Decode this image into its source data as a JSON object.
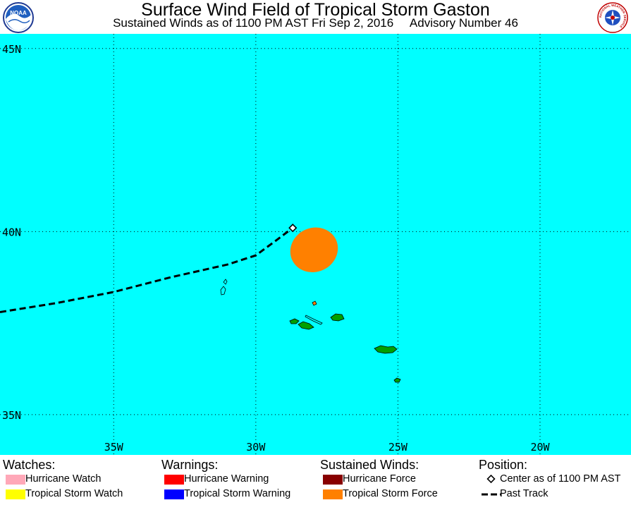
{
  "header": {
    "title": "Surface Wind Field of Tropical Storm Gaston",
    "subtitle_left": "Sustained Winds as of 1100 PM AST Fri Sep 2, 2016",
    "subtitle_right": "Advisory Number 46",
    "left_logo_text": "NOAA",
    "right_logo_text": "NATIONAL WEATHER SERVICE"
  },
  "map": {
    "ocean_color": "#00ffff",
    "land_color": "#00a000",
    "lat_labels": [
      "45N",
      "40N",
      "35N"
    ],
    "lon_labels": [
      "35W",
      "30W",
      "25W",
      "20W"
    ],
    "lat_range": [
      33.9,
      45.4
    ],
    "lon_range": [
      -39.0,
      -16.8
    ],
    "past_track": [
      [
        -39.0,
        37.8
      ],
      [
        -37.0,
        38.05
      ],
      [
        -35.0,
        38.35
      ],
      [
        -33.0,
        38.75
      ],
      [
        -31.0,
        39.1
      ],
      [
        -30.0,
        39.35
      ],
      [
        -29.3,
        39.75
      ],
      [
        -28.7,
        40.1
      ]
    ],
    "center": {
      "lon": -28.7,
      "lat": 40.1,
      "label": "Center as of 1100 PM AST"
    },
    "tropical_storm_wind_color": "#ff8000",
    "tropical_storm_wind_area": {
      "center_lon": -27.95,
      "center_lat": 39.5,
      "radius_lon": 0.85,
      "radius_lat": 0.6
    }
  },
  "legend": {
    "watches": {
      "heading": "Watches:",
      "items": [
        {
          "label": "Hurricane Watch",
          "color": "#ffa8b8"
        },
        {
          "label": "Tropical Storm Watch",
          "color": "#ffff00"
        }
      ]
    },
    "warnings": {
      "heading": "Warnings:",
      "items": [
        {
          "label": "Hurricane Warning",
          "color": "#ff0000"
        },
        {
          "label": "Tropical Storm Warning",
          "color": "#0000ff"
        }
      ]
    },
    "winds": {
      "heading": "Sustained Winds:",
      "items": [
        {
          "label": "Hurricane Force",
          "color": "#880000"
        },
        {
          "label": "Tropical Storm Force",
          "color": "#ff8000"
        }
      ]
    },
    "position": {
      "heading": "Position:",
      "center_label": "Center as of 1100 PM AST",
      "track_label": "Past Track"
    }
  }
}
